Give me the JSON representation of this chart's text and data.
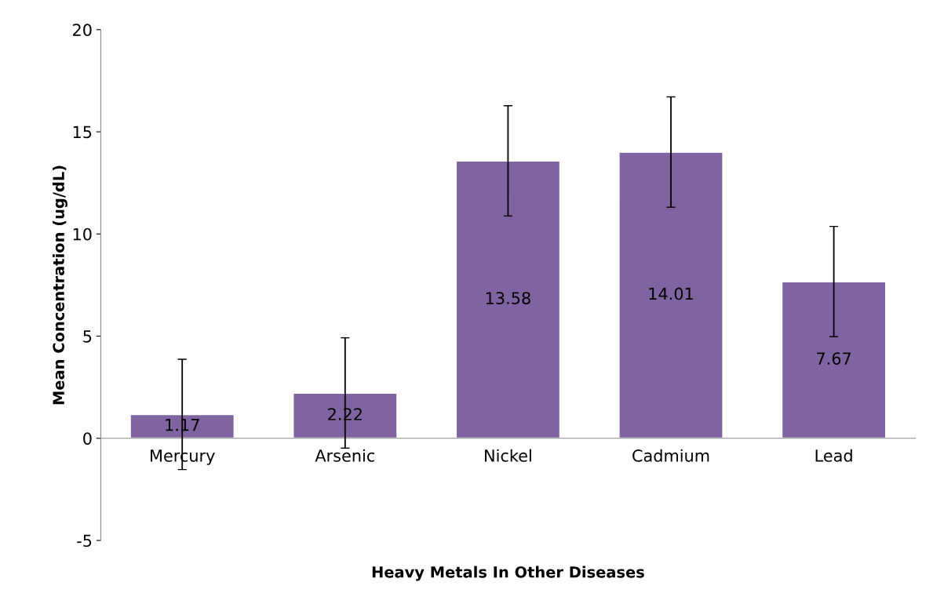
{
  "chart_data": {
    "type": "bar",
    "xlabel": "Heavy Metals In Other Diseases",
    "ylabel": "Mean Concentration (ug/dL)",
    "categories": [
      "Mercury",
      "Arsenic",
      "Nickel",
      "Cadmium",
      "Lead"
    ],
    "values": [
      1.17,
      2.22,
      13.58,
      14.01,
      7.67
    ],
    "errors": [
      2.7,
      2.7,
      2.7,
      2.7,
      2.7
    ],
    "color": "#8064a2",
    "data_labels": true,
    "grid": false,
    "legend": false,
    "ylim": [
      -5,
      20
    ],
    "yticks": [
      -5,
      0,
      5,
      10,
      15,
      20
    ]
  }
}
